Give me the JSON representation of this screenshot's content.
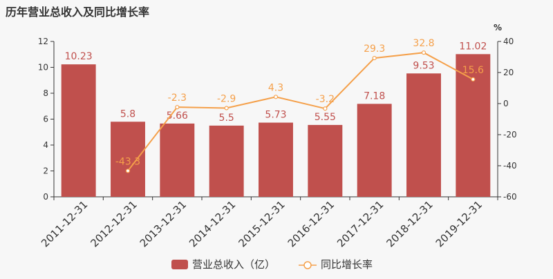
{
  "chart_data": {
    "type": "bar+line",
    "title": "历年营业总收入及同比增长率",
    "categories": [
      "2011-12-31",
      "2012-12-31",
      "2013-12-31",
      "2014-12-31",
      "2015-12-31",
      "2016-12-31",
      "2017-12-31",
      "2018-12-31",
      "2019-12-31"
    ],
    "series": [
      {
        "name": "营业总收入（亿）",
        "type": "bar",
        "axis": "left",
        "color": "#c0504d",
        "values": [
          10.23,
          5.8,
          5.66,
          5.5,
          5.73,
          5.55,
          7.18,
          9.53,
          11.02
        ],
        "labels": [
          "10.23",
          "5.8",
          "5.66",
          "5.5",
          "5.73",
          "5.55",
          "7.18",
          "9.53",
          "11.02"
        ]
      },
      {
        "name": "同比增长率",
        "type": "line",
        "axis": "right",
        "color": "#f5a04a",
        "values": [
          null,
          -43.3,
          -2.3,
          -2.9,
          4.3,
          -3.2,
          29.3,
          32.8,
          15.6
        ],
        "labels": [
          "",
          "-43.3",
          "-2.3",
          "-2.9",
          "4.3",
          "-3.2",
          "29.3",
          "32.8",
          "15.6"
        ]
      }
    ],
    "y_left": {
      "min": 0,
      "max": 12,
      "ticks": [
        "0",
        "2",
        "4",
        "6",
        "8",
        "10",
        "12"
      ]
    },
    "y_right": {
      "min": -60,
      "max": 40,
      "ticks": [
        "-60",
        "-40",
        "-20",
        "0",
        "20",
        "40"
      ],
      "unit": "%"
    },
    "legend": {
      "position": "bottom",
      "items": [
        "营业总收入（亿）",
        "同比增长率"
      ]
    },
    "grid": false
  }
}
